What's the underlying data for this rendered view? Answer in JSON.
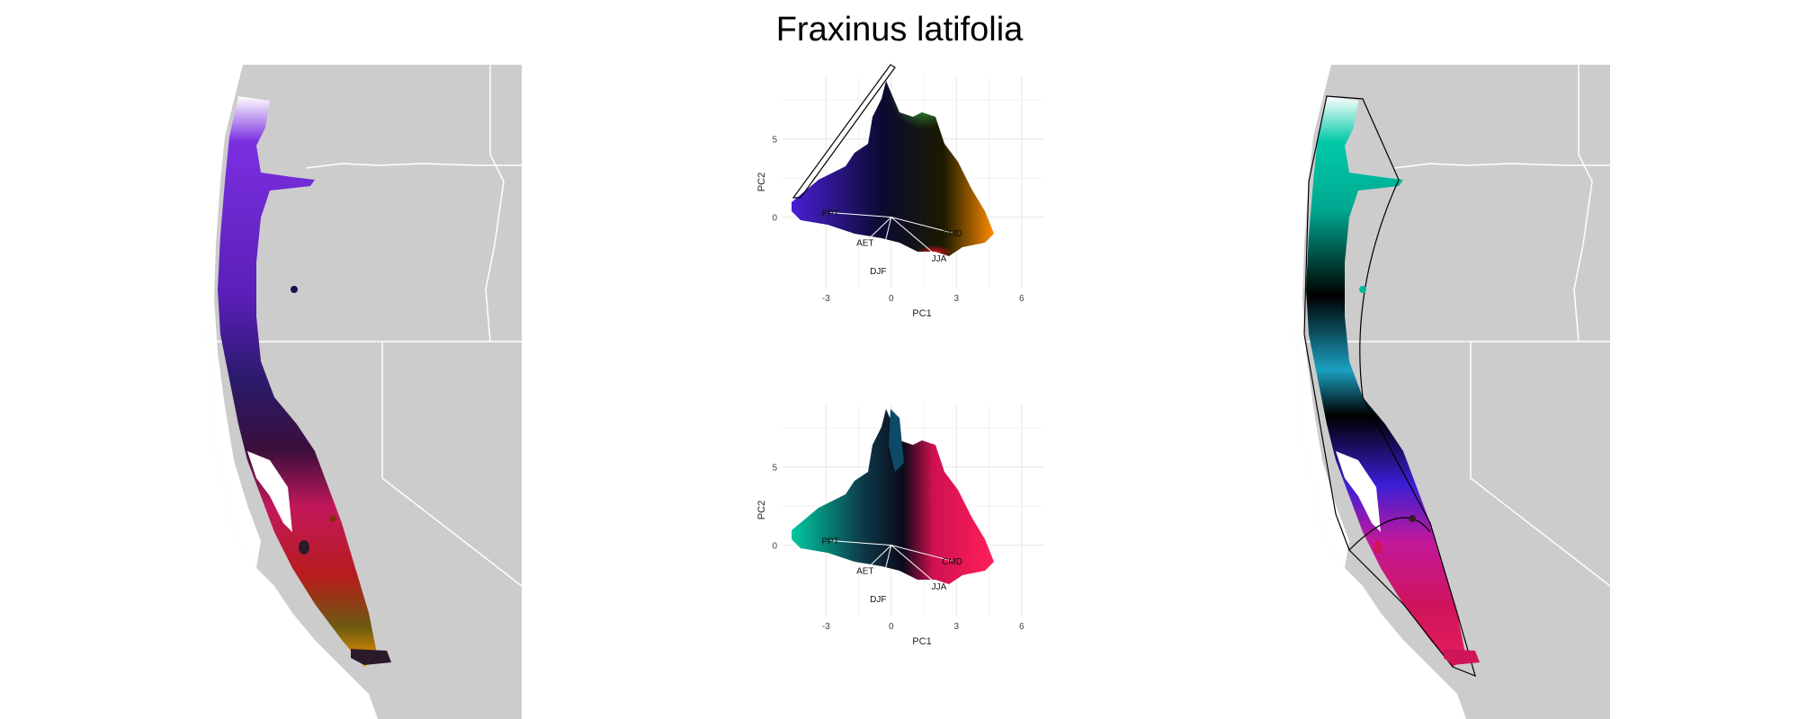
{
  "title": "Fraxinus latifolia",
  "colors": {
    "land": "#cccccc",
    "border": "#ffffff",
    "grid": "#e6e6e6",
    "outline": "#000000"
  },
  "maps": [
    {
      "name": "left",
      "description_palette": [
        "#6a1fd6",
        "#3a1a8a",
        "#1b0d2e",
        "#c2185b",
        "#d32f2f",
        "#ff9800"
      ]
    },
    {
      "name": "right",
      "description_palette": [
        "#00c9a7",
        "#0aa5b0",
        "#000000",
        "#3a1fd6",
        "#c2189b",
        "#e91e63"
      ]
    }
  ],
  "chart_data": [
    {
      "type": "scatter",
      "panel": "top",
      "xlabel": "PC1",
      "ylabel": "PC2",
      "x_ticks": [
        "-3",
        "0",
        "3",
        "6"
      ],
      "y_ticks": [
        "0",
        "5"
      ],
      "x_tick_values": [
        -3,
        0,
        3,
        6
      ],
      "y_tick_values": [
        0,
        5
      ],
      "xlim": [
        -5,
        7
      ],
      "ylim": [
        -4.5,
        9
      ],
      "grid": true,
      "vectors": [
        {
          "label": "PPT",
          "x": -2.8,
          "y": 0.3
        },
        {
          "label": "AET",
          "x": -1.2,
          "y": -1.6
        },
        {
          "label": "DJF",
          "x": -0.6,
          "y": -3.4
        },
        {
          "label": "JJA",
          "x": 2.2,
          "y": -2.6
        },
        {
          "label": "CMD",
          "x": 2.8,
          "y": -1.0
        }
      ]
    },
    {
      "type": "scatter",
      "panel": "bottom",
      "xlabel": "PC1",
      "ylabel": "PC2",
      "x_ticks": [
        "-3",
        "0",
        "3",
        "6"
      ],
      "y_ticks": [
        "0",
        "5"
      ],
      "x_tick_values": [
        -3,
        0,
        3,
        6
      ],
      "y_tick_values": [
        0,
        5
      ],
      "xlim": [
        -5,
        7
      ],
      "ylim": [
        -4.5,
        9
      ],
      "grid": true,
      "vectors": [
        {
          "label": "PPT",
          "x": -2.8,
          "y": 0.3
        },
        {
          "label": "AET",
          "x": -1.2,
          "y": -1.6
        },
        {
          "label": "DJF",
          "x": -0.6,
          "y": -3.4
        },
        {
          "label": "JJA",
          "x": 2.2,
          "y": -2.6
        },
        {
          "label": "CMD",
          "x": 2.8,
          "y": -1.0
        }
      ]
    }
  ]
}
